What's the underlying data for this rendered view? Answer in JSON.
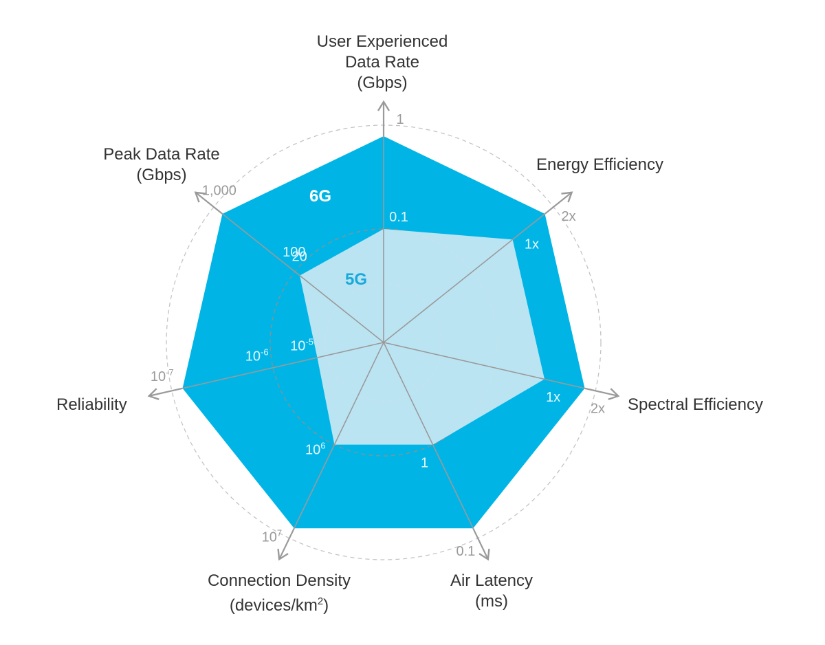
{
  "colors": {
    "outer_series": "#00b5e6",
    "inner_series": "#c9e7f3",
    "axis_line": "#9a9a9a",
    "axis_on_dark": "#cdeef8",
    "tick_on_dark": "#e6f6fc",
    "tick_outside": "#9a9a9a",
    "inner_label": "#18a9dc"
  },
  "chart_data": {
    "type": "radar",
    "title": "",
    "axes": [
      {
        "key": "user",
        "label_lines": [
          "User Experienced",
          "Data Rate",
          "(Gbps)"
        ],
        "tick_5g": "0.1",
        "tick_6g": "1"
      },
      {
        "key": "energy",
        "label_lines": [
          "Energy Efficiency"
        ],
        "tick_5g": "1x",
        "tick_6g": "2x"
      },
      {
        "key": "spectral",
        "label_lines": [
          "Spectral Efficiency"
        ],
        "tick_5g": "1x",
        "tick_6g": "2x"
      },
      {
        "key": "latency",
        "label_lines": [
          "Air Latency",
          "(ms)"
        ],
        "tick_5g": "1",
        "tick_6g": "0.1"
      },
      {
        "key": "density",
        "label_lines": [
          "Connection Density",
          "(devices/km2)"
        ],
        "tick_5g": "10^6",
        "tick_6g": "10^7"
      },
      {
        "key": "reliability",
        "label_lines": [
          "Reliability"
        ],
        "tick_5g": "10^-5",
        "tick_mid": "10^-6",
        "tick_6g": "10^-7"
      },
      {
        "key": "peak",
        "label_lines": [
          "Peak Data Rate",
          "(Gbps)"
        ],
        "tick_5g": "20",
        "tick_mid": "100",
        "tick_6g": "1,000"
      }
    ],
    "series": [
      {
        "name": "6G",
        "values": [
          1,
          1,
          1,
          1,
          1,
          1,
          1
        ]
      },
      {
        "name": "5G",
        "values": [
          0.55,
          0.8,
          0.8,
          0.55,
          0.55,
          0.33,
          0.52
        ]
      }
    ],
    "grid": "dashed circles"
  }
}
